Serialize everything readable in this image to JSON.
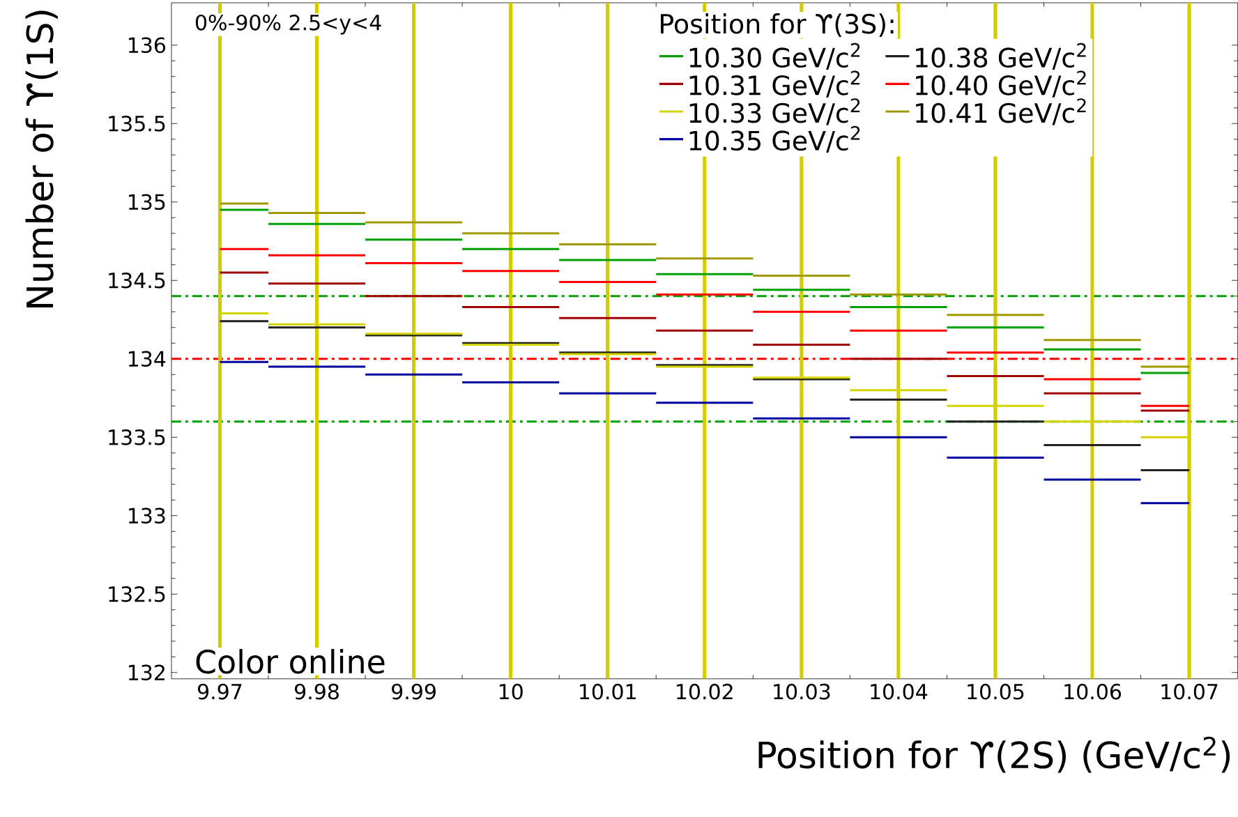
{
  "chart_data": {
    "type": "step",
    "xlabel": "Position for ϒ(2S) (GeV/c$^{2}$)",
    "ylabel": "Number of ϒ(1S)",
    "legend_title": "Position for ϒ(3S):",
    "legend": "top right",
    "x": [
      9.97,
      9.98,
      9.99,
      10,
      10.01,
      10.02,
      10.03,
      10.04,
      10.05,
      10.06,
      10.07
    ],
    "xlim": [
      9.965,
      10.075
    ],
    "xticks": [
      9.97,
      9.98,
      9.99,
      10,
      10.01,
      10.02,
      10.03,
      10.04,
      10.05,
      10.06,
      10.07
    ],
    "ylim": [
      131.96,
      136.27
    ],
    "yticks": [
      132,
      132.5,
      133,
      133.5,
      134,
      134.5,
      135,
      135.5,
      136
    ],
    "series": [
      {
        "name": "10.30 GeV/c$^{2}$",
        "color": "#00a000",
        "values": [
          134.95,
          134.86,
          134.76,
          134.7,
          134.63,
          134.54,
          134.44,
          134.33,
          134.2,
          134.06,
          133.91
        ]
      },
      {
        "name": "10.38 GeV/c$^{2}$",
        "color": "#202020",
        "values": [
          134.24,
          134.2,
          134.15,
          134.1,
          134.04,
          133.96,
          133.87,
          133.74,
          133.6,
          133.45,
          133.29
        ]
      },
      {
        "name": "10.31 GeV/c$^{2}$",
        "color": "#a00000",
        "values": [
          134.55,
          134.48,
          134.4,
          134.33,
          134.26,
          134.18,
          134.09,
          134.0,
          133.89,
          133.78,
          133.67
        ]
      },
      {
        "name": "10.40 GeV/c$^{2}$",
        "color": "#ff0000",
        "values": [
          134.7,
          134.66,
          134.61,
          134.56,
          134.49,
          134.41,
          134.3,
          134.18,
          134.04,
          133.87,
          133.7
        ]
      },
      {
        "name": "10.33 GeV/c$^{2}$",
        "color": "#d4d400",
        "values": [
          134.29,
          134.22,
          134.16,
          134.09,
          134.03,
          133.95,
          133.88,
          133.8,
          133.7,
          133.6,
          133.5
        ]
      },
      {
        "name": "10.41 GeV/c$^{2}$",
        "color": "#a09a00",
        "values": [
          134.99,
          134.93,
          134.87,
          134.8,
          134.73,
          134.64,
          134.53,
          134.41,
          134.28,
          134.12,
          133.95
        ]
      },
      {
        "name": "10.35 GeV/c$^{2}$",
        "color": "#0000a0",
        "values": [
          133.98,
          133.95,
          133.9,
          133.85,
          133.78,
          133.72,
          133.62,
          133.5,
          133.37,
          133.23,
          133.08
        ]
      }
    ],
    "ref_lines": [
      {
        "axis": "y",
        "value": 134.4,
        "color": "#00a000",
        "line_style": "dashdot"
      },
      {
        "axis": "y",
        "value": 134.0,
        "color": "#ff0000",
        "line_style": "dashdot"
      },
      {
        "axis": "y",
        "value": 133.6,
        "color": "#00a000",
        "line_style": "dashdot"
      },
      {
        "axis": "x",
        "value": 9.97,
        "color": "#d4cc00"
      },
      {
        "axis": "x",
        "value": 9.98,
        "color": "#d4cc00"
      },
      {
        "axis": "x",
        "value": 9.99,
        "color": "#d4cc00"
      },
      {
        "axis": "x",
        "value": 10,
        "color": "#d4cc00"
      },
      {
        "axis": "x",
        "value": 10.01,
        "color": "#d4cc00"
      },
      {
        "axis": "x",
        "value": 10.02,
        "color": "#d4cc00"
      },
      {
        "axis": "x",
        "value": 10.03,
        "color": "#d4cc00"
      },
      {
        "axis": "x",
        "value": 10.04,
        "color": "#d4cc00"
      },
      {
        "axis": "x",
        "value": 10.05,
        "color": "#d4cc00"
      },
      {
        "axis": "x",
        "value": 10.06,
        "color": "#d4cc00"
      },
      {
        "axis": "x",
        "value": 10.07,
        "color": "#d4cc00"
      }
    ],
    "annotations": [
      "0%-90%  2.5<y<4",
      "Color online"
    ]
  }
}
